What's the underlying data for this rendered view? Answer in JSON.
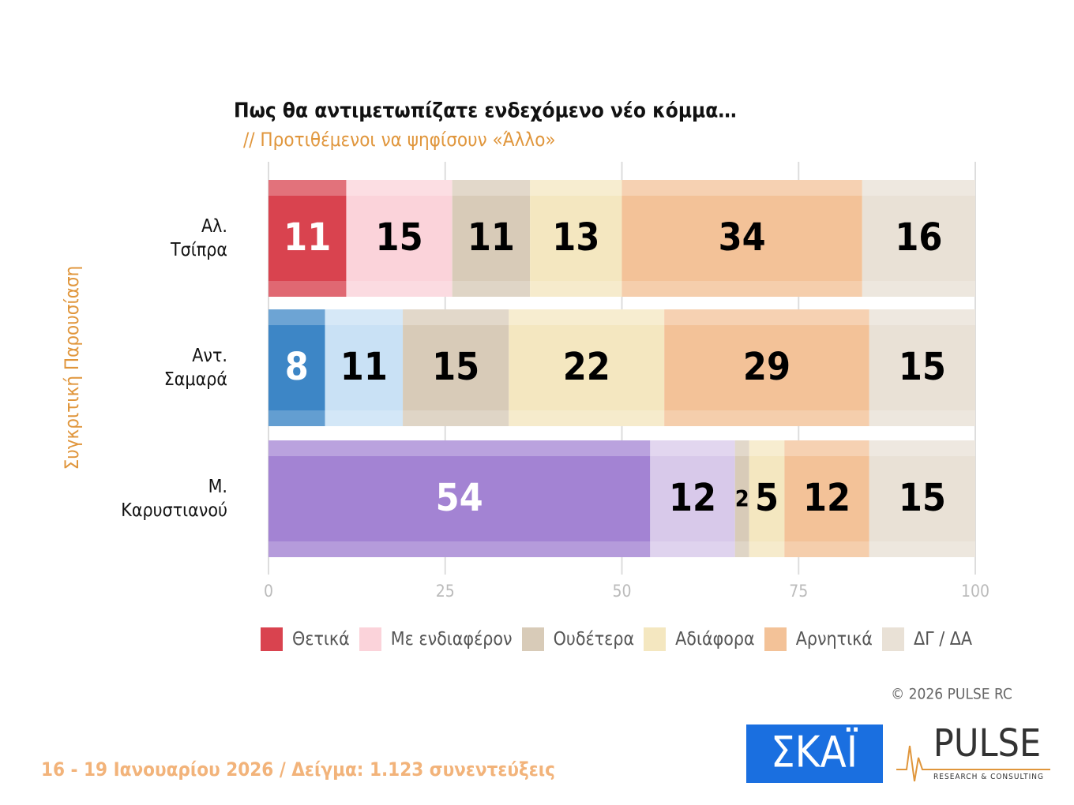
{
  "chart_data": {
    "type": "stacked-bar-horizontal",
    "title": "Πως θα αντιμετωπίζατε ενδεχόμενο νέο κόμμα…",
    "subtitle": "// Προτιθέμενοι να ψηφίσουν «Άλλο»",
    "y_axis_label": "Συγκριτική Παρουσίαση",
    "categories": [
      "Αλ.\nΤσίπρα",
      "Αντ.\nΣαμαρά",
      "Μ.\nΚαρυστιανού"
    ],
    "series": [
      {
        "name": "Θετικά",
        "color": "#d9434f",
        "colors": [
          "#d9434f",
          "#3d86c6",
          "#a383d3"
        ],
        "label_color": "#ffffff",
        "values": [
          11,
          8,
          54
        ]
      },
      {
        "name": "Με ενδιαφέρον",
        "color": "#fbd3da",
        "colors": [
          "#fbd3da",
          "#c9e1f5",
          "#d8c9ea"
        ],
        "label_color": "#000000",
        "values": [
          15,
          11,
          12
        ]
      },
      {
        "name": "Ουδέτερα",
        "color": "#d8cbb8",
        "label_color": "#000000",
        "values": [
          11,
          15,
          2
        ]
      },
      {
        "name": "Αδιάφορα",
        "color": "#f4e7c0",
        "label_color": "#000000",
        "values": [
          13,
          22,
          5
        ]
      },
      {
        "name": "Αρνητικά",
        "color": "#f3c298",
        "label_color": "#000000",
        "values": [
          34,
          29,
          12
        ]
      },
      {
        "name": "ΔΓ / ΔΑ",
        "color": "#e9e1d6",
        "label_color": "#000000",
        "values": [
          16,
          15,
          15
        ]
      }
    ],
    "xlim": [
      0,
      100
    ],
    "xticks": [
      0,
      25,
      50,
      75,
      100
    ],
    "grid": true
  },
  "footer": {
    "fieldwork": "16 - 19 Ιανουαρίου 2026  /  Δείγμα:  1.123 συνεντεύξεις",
    "copyright": "©  2026  PULSE RC",
    "logo_skai": "ΣΚΑΪ",
    "logo_pulse": "PULSE",
    "logo_pulse_sub": "RESEARCH & CONSULTING"
  }
}
